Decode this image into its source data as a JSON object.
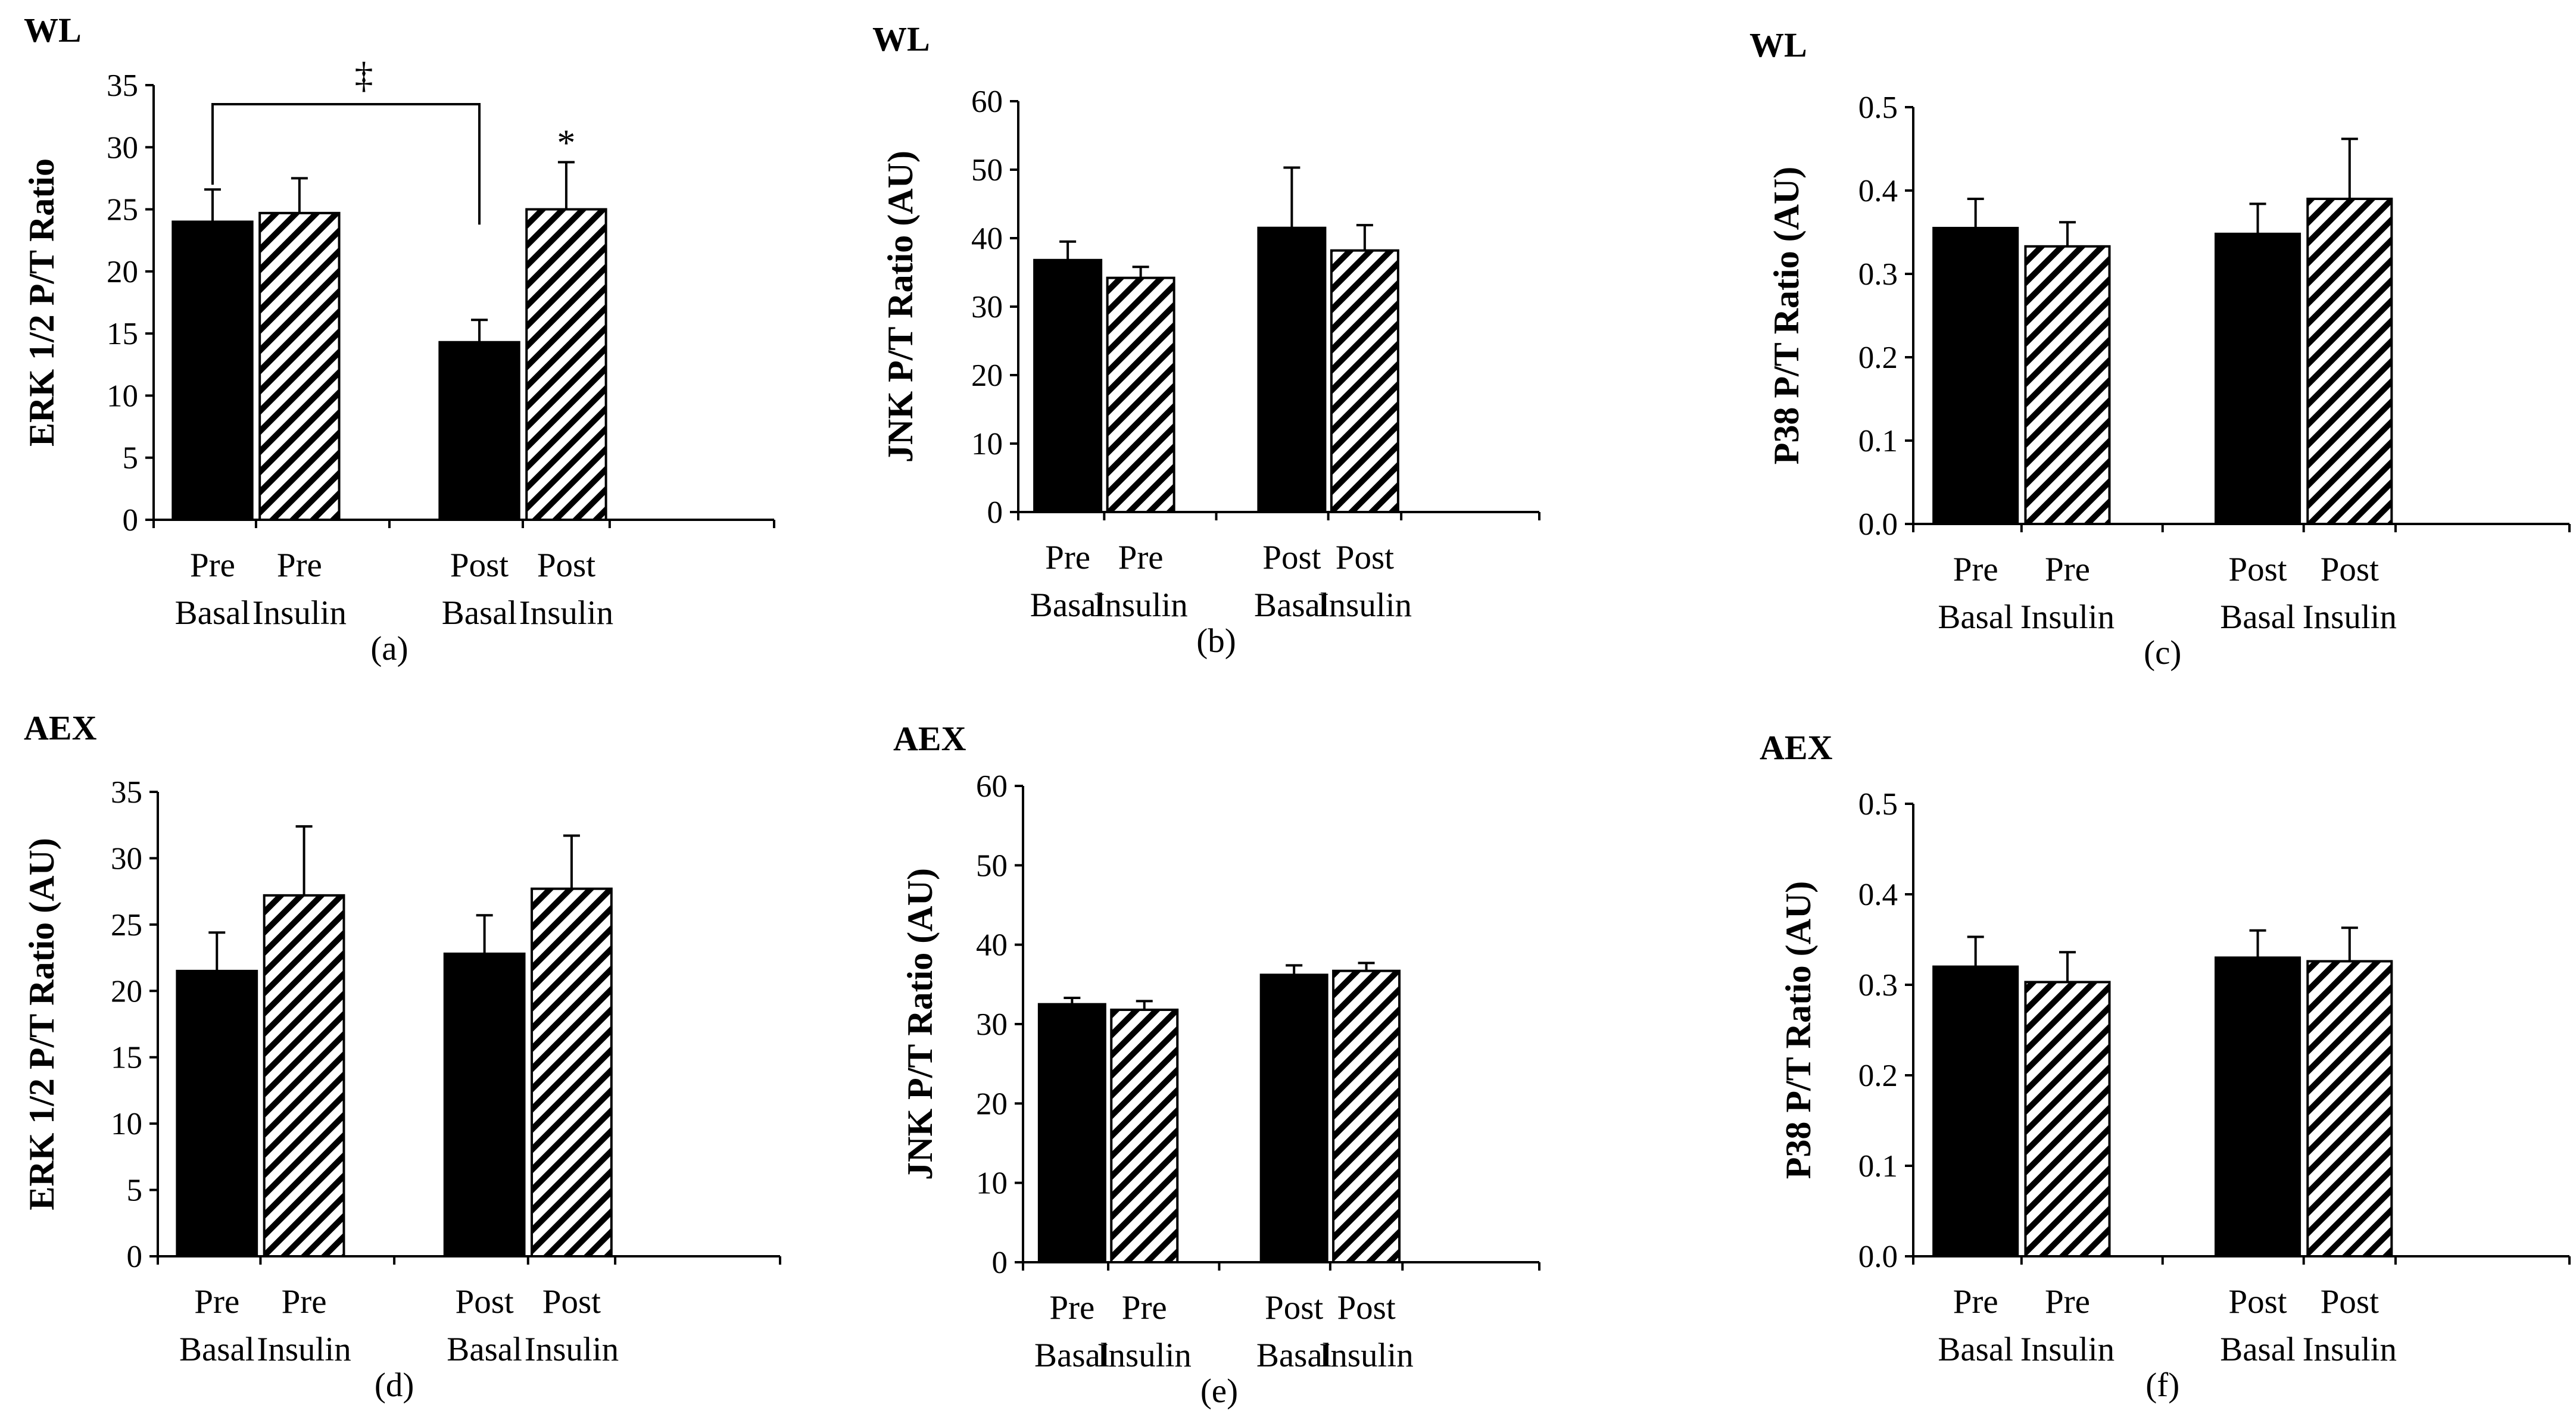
{
  "chart_data": [
    {
      "id": "a",
      "type": "bar",
      "group": "WL",
      "panel_label": "(a)",
      "ylabel": "ERK 1/2 P/T Ratio",
      "ylim": [
        0,
        35
      ],
      "yticks": [
        0,
        5,
        10,
        15,
        20,
        25,
        30,
        35
      ],
      "ytick_labels": [
        "0",
        "5",
        "10",
        "15",
        "20",
        "25",
        "30",
        "35"
      ],
      "categories": [
        [
          "Pre",
          "Basal"
        ],
        [
          "Pre",
          "Insulin"
        ],
        [
          "Post",
          "Basal"
        ],
        [
          "Post",
          "Insulin"
        ]
      ],
      "series": [
        {
          "name": "Bars",
          "values": [
            24.0,
            24.7,
            14.3,
            25.0
          ],
          "errors": [
            2.6,
            2.8,
            1.8,
            3.8
          ],
          "fills": [
            "solid",
            "hatched",
            "solid",
            "hatched"
          ]
        }
      ],
      "annotations": [
        {
          "text": "‡",
          "type": "bracket",
          "from": 0,
          "to": 2
        },
        {
          "text": "*",
          "type": "bar",
          "index": 3
        }
      ]
    },
    {
      "id": "b",
      "type": "bar",
      "group": "WL",
      "panel_label": "(b)",
      "ylabel": "JNK P/T Ratio (AU)",
      "ylim": [
        0,
        60
      ],
      "yticks": [
        0,
        10,
        20,
        30,
        40,
        50,
        60
      ],
      "ytick_labels": [
        "0",
        "10",
        "20",
        "30",
        "40",
        "50",
        "60"
      ],
      "categories": [
        [
          "Pre",
          "Basal"
        ],
        [
          "Pre",
          "Insulin"
        ],
        [
          "Post",
          "Basal"
        ],
        [
          "Post",
          "Insulin"
        ]
      ],
      "series": [
        {
          "name": "Bars",
          "values": [
            36.8,
            34.2,
            41.5,
            38.2
          ],
          "errors": [
            2.7,
            1.6,
            8.8,
            3.7
          ],
          "fills": [
            "solid",
            "hatched",
            "solid",
            "hatched"
          ]
        }
      ],
      "annotations": []
    },
    {
      "id": "c",
      "type": "bar",
      "group": "WL",
      "panel_label": "(c)",
      "ylabel": "P38 P/T Ratio (AU)",
      "ylim": [
        0,
        0.5
      ],
      "yticks": [
        0,
        0.1,
        0.2,
        0.3,
        0.4,
        0.5
      ],
      "ytick_labels": [
        "0.0",
        "0.1",
        "0.2",
        "0.3",
        "0.4",
        "0.5"
      ],
      "categories": [
        [
          "Pre",
          "Basal"
        ],
        [
          "Pre",
          "Insulin"
        ],
        [
          "Post",
          "Basal"
        ],
        [
          "Post",
          "Insulin"
        ]
      ],
      "series": [
        {
          "name": "Bars",
          "values": [
            0.355,
            0.333,
            0.348,
            0.39
          ],
          "errors": [
            0.035,
            0.029,
            0.036,
            0.072
          ],
          "fills": [
            "solid",
            "hatched",
            "solid",
            "hatched"
          ]
        }
      ],
      "annotations": []
    },
    {
      "id": "d",
      "type": "bar",
      "group": "AEX",
      "panel_label": "(d)",
      "ylabel": "ERK 1/2 P/T Ratio (AU)",
      "ylim": [
        0,
        35
      ],
      "yticks": [
        0,
        5,
        10,
        15,
        20,
        25,
        30,
        35
      ],
      "ytick_labels": [
        "0",
        "5",
        "10",
        "15",
        "20",
        "25",
        "30",
        "35"
      ],
      "categories": [
        [
          "Pre",
          "Basal"
        ],
        [
          "Pre",
          "Insulin"
        ],
        [
          "Post",
          "Basal"
        ],
        [
          "Post",
          "Insulin"
        ]
      ],
      "series": [
        {
          "name": "Bars",
          "values": [
            21.5,
            27.2,
            22.8,
            27.7
          ],
          "errors": [
            2.9,
            5.2,
            2.9,
            4.0
          ],
          "fills": [
            "solid",
            "hatched",
            "solid",
            "hatched"
          ]
        }
      ],
      "annotations": []
    },
    {
      "id": "e",
      "type": "bar",
      "group": "AEX",
      "panel_label": "(e)",
      "ylabel": "JNK P/T Ratio (AU)",
      "ylim": [
        0,
        60
      ],
      "yticks": [
        0,
        10,
        20,
        30,
        40,
        50,
        60
      ],
      "ytick_labels": [
        "0",
        "10",
        "20",
        "30",
        "40",
        "50",
        "60"
      ],
      "categories": [
        [
          "Pre",
          "Basal"
        ],
        [
          "Pre",
          "Insulin"
        ],
        [
          "Post",
          "Basal"
        ],
        [
          "Post",
          "Insulin"
        ]
      ],
      "series": [
        {
          "name": "Bars",
          "values": [
            32.5,
            31.8,
            36.2,
            36.7
          ],
          "errors": [
            0.8,
            1.1,
            1.2,
            1.0
          ],
          "fills": [
            "solid",
            "hatched",
            "solid",
            "hatched"
          ]
        }
      ],
      "annotations": []
    },
    {
      "id": "f",
      "type": "bar",
      "group": "AEX",
      "panel_label": "(f)",
      "ylabel": "P38 P/T Ratio (AU)",
      "ylim": [
        0,
        0.5
      ],
      "yticks": [
        0,
        0.1,
        0.2,
        0.3,
        0.4,
        0.5
      ],
      "ytick_labels": [
        "0.0",
        "0.1",
        "0.2",
        "0.3",
        "0.4",
        "0.5"
      ],
      "categories": [
        [
          "Pre",
          "Basal"
        ],
        [
          "Pre",
          "Insulin"
        ],
        [
          "Post",
          "Basal"
        ],
        [
          "Post",
          "Insulin"
        ]
      ],
      "series": [
        {
          "name": "Bars",
          "values": [
            0.32,
            0.303,
            0.33,
            0.326
          ],
          "errors": [
            0.033,
            0.033,
            0.03,
            0.037
          ],
          "fills": [
            "solid",
            "hatched",
            "solid",
            "hatched"
          ]
        }
      ],
      "annotations": []
    }
  ]
}
